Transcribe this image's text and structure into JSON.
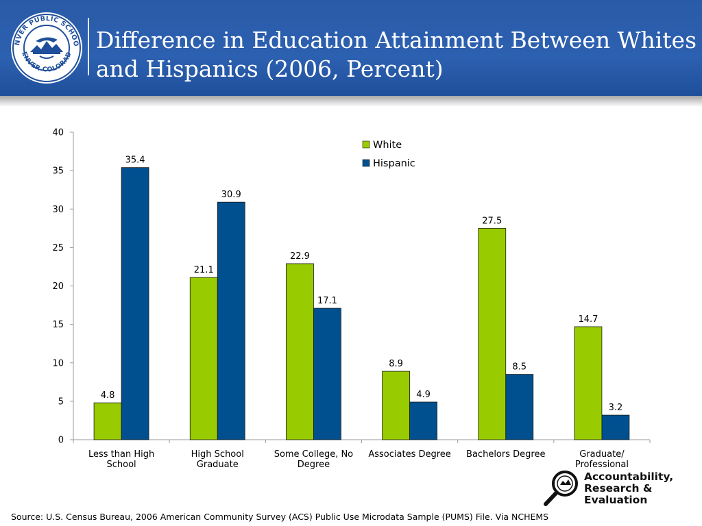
{
  "header": {
    "title_line1": "Difference in Education Attainment Between Whites",
    "title_line2": "and Hispanics (2006, Percent)",
    "logo_text": "DENVER PUBLIC SCHOOLS · DENVER COLORADO"
  },
  "chart_data": {
    "type": "bar",
    "title": "",
    "xlabel": "",
    "ylabel": "",
    "ylim": [
      0,
      40
    ],
    "yticks": [
      0,
      5,
      10,
      15,
      20,
      25,
      30,
      35,
      40
    ],
    "grid": false,
    "legend_position": "top-right",
    "categories": [
      [
        "Less than High",
        "School"
      ],
      [
        "High School",
        "Graduate"
      ],
      [
        "Some College, No",
        "Degree"
      ],
      [
        "Associates Degree"
      ],
      [
        "Bachelors Degree"
      ],
      [
        "Graduate/",
        "Professional"
      ]
    ],
    "series": [
      {
        "name": "White",
        "color": "#99cc00",
        "values": [
          4.8,
          21.1,
          22.9,
          8.9,
          27.5,
          14.7
        ]
      },
      {
        "name": "Hispanic",
        "color": "#004f8f",
        "values": [
          35.4,
          30.9,
          17.1,
          4.9,
          8.5,
          3.2
        ]
      }
    ]
  },
  "footer": {
    "source": "Source:  U.S. Census Bureau, 2006 American Community Survey (ACS) Public Use Microdata Sample (PUMS) File. Via NCHEMS",
    "logo_line1": "Accountability,",
    "logo_line2": "Research &",
    "logo_line3": "Evaluation",
    "logo_icon": "magnifying-glass-icon"
  }
}
